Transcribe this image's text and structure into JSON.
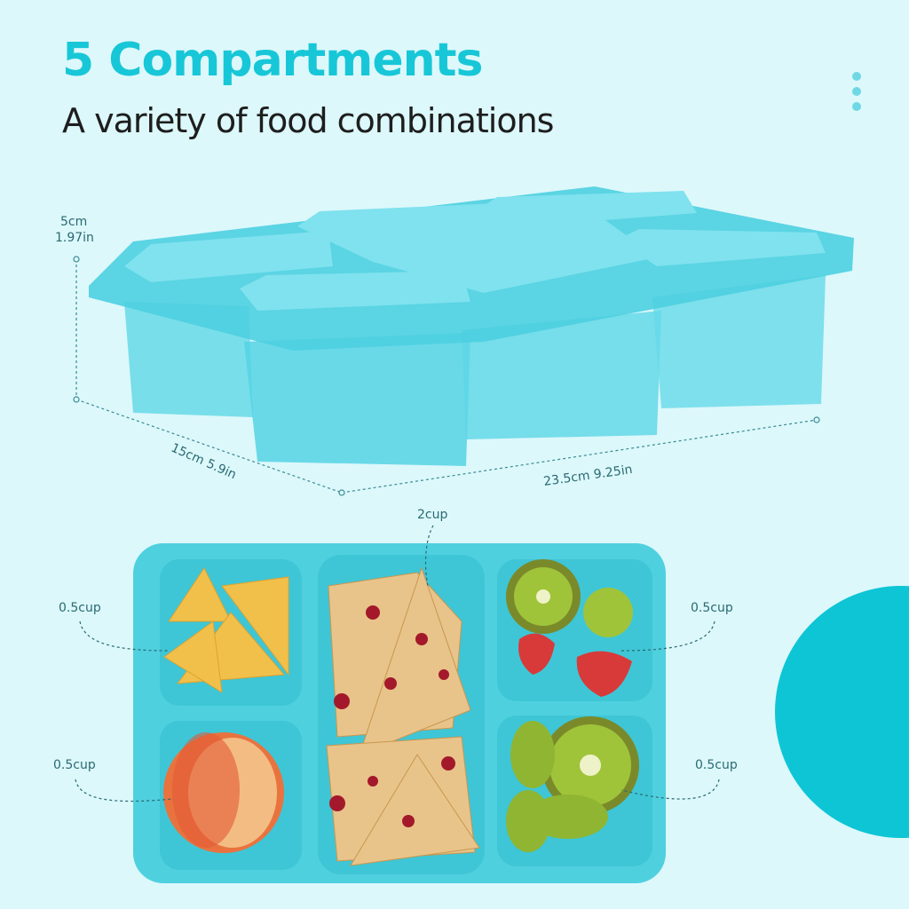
{
  "header": {
    "title": "5 Compartments",
    "subtitle": "A variety of food combinations"
  },
  "dimensions": {
    "height_cm": "5cm",
    "height_in": "1.97in",
    "depth": "15cm 5.9in",
    "width": "23.5cm 9.25in"
  },
  "capacities": {
    "center": "2cup",
    "top_left": "0.5cup",
    "bottom_left": "0.5cup",
    "top_right": "0.5cup",
    "bottom_right": "0.5cup"
  },
  "colors": {
    "accent": "#17c7d7",
    "background": "#dcf8fb",
    "container": "#4fd0df",
    "circle": "#0ec5d6"
  },
  "icons": {
    "menu": "vertical-dots-icon"
  }
}
